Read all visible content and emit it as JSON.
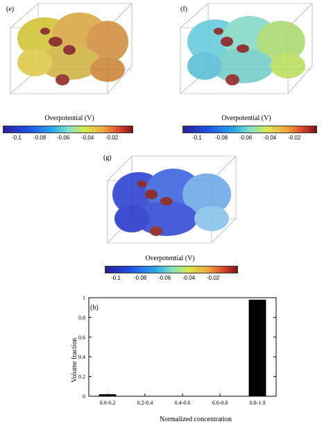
{
  "panels": [
    {
      "label": "(e)",
      "colorbar_title": "Overpotential (V)",
      "ticks": [
        "-0.1",
        "-0.08",
        "-0.06",
        "-0.04",
        "-0.02"
      ],
      "dominant_color": "#d9a53a"
    },
    {
      "label": "(f)",
      "colorbar_title": "Overpotential (V)",
      "ticks": [
        "-0.1",
        "-0.08",
        "-0.06",
        "-0.04",
        "-0.02"
      ],
      "dominant_color": "#8fdcc8"
    },
    {
      "label": "(g)",
      "colorbar_title": "Overpotential (V)",
      "ticks": [
        "-0.1",
        "-0.08",
        "-0.06",
        "-0.04",
        "-0.02"
      ],
      "dominant_color": "#3a55d8"
    }
  ],
  "chart_data": {
    "type": "bar",
    "panel_label": "(h)",
    "categories": [
      "0.0-0.2",
      "0.2-0.4",
      "0.4-0.6",
      "0.6-0.8",
      "0.8-1.0"
    ],
    "values": [
      0.02,
      0.0,
      0.0,
      0.0,
      0.98
    ],
    "ylim": [
      0,
      1
    ],
    "yticks": [
      "0",
      "0.2",
      "0.4",
      "0.6",
      "0.8",
      "1"
    ],
    "xlabel": "Normalized concentration",
    "ylabel": "Volume fraction",
    "bar_color": "#000000"
  }
}
